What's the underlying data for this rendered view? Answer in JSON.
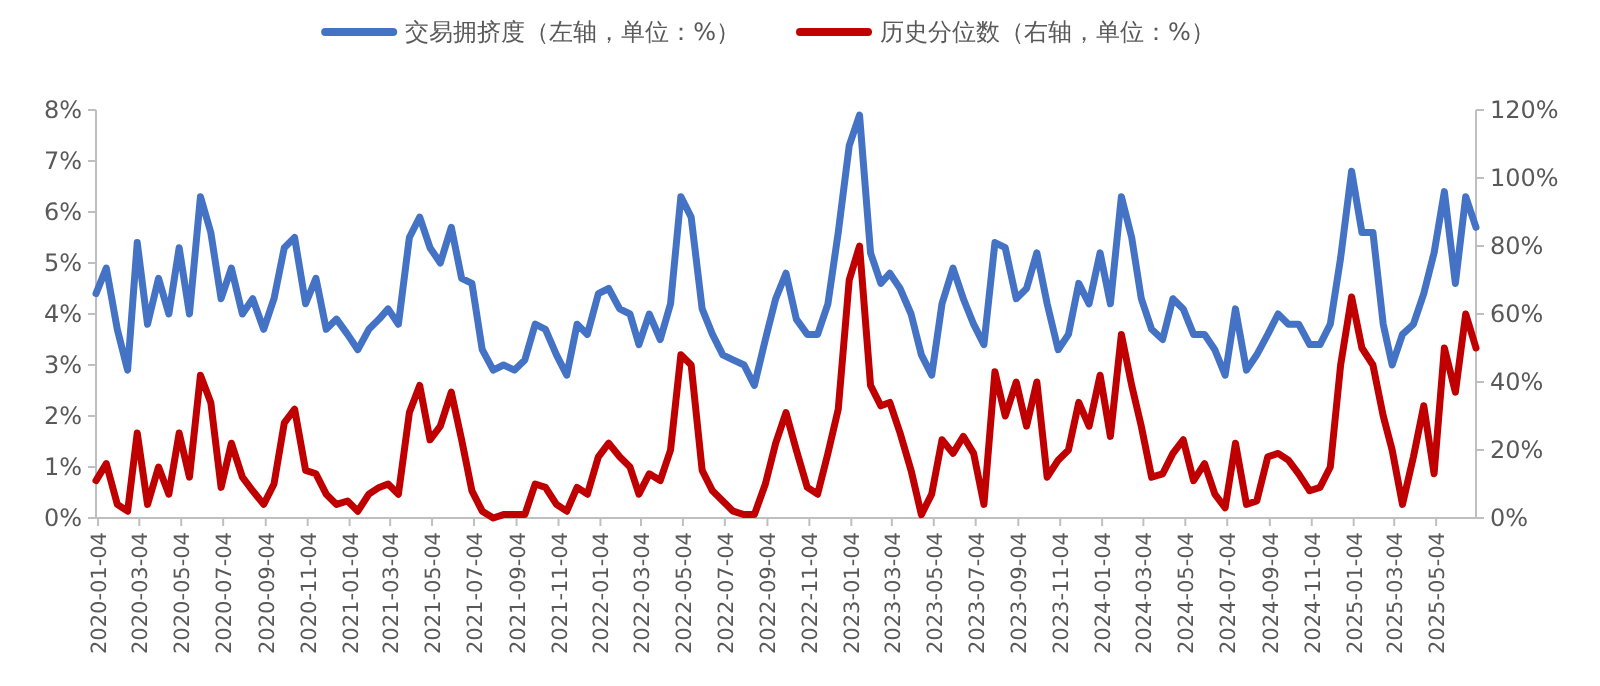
{
  "chart_data": {
    "type": "line",
    "legend": "top",
    "x": [
      "2020-01-01",
      "2020-01-16",
      "2020-02-01",
      "2020-02-16",
      "2020-03-01",
      "2020-03-16",
      "2020-04-01",
      "2020-04-16",
      "2020-05-01",
      "2020-05-16",
      "2020-06-01",
      "2020-06-16",
      "2020-07-01",
      "2020-07-16",
      "2020-08-01",
      "2020-08-16",
      "2020-09-01",
      "2020-09-16",
      "2020-10-01",
      "2020-10-16",
      "2020-11-01",
      "2020-11-16",
      "2020-12-01",
      "2020-12-16",
      "2021-01-01",
      "2021-01-16",
      "2021-02-01",
      "2021-02-16",
      "2021-03-01",
      "2021-03-16",
      "2021-04-01",
      "2021-04-16",
      "2021-05-01",
      "2021-05-16",
      "2021-06-01",
      "2021-06-16",
      "2021-07-01",
      "2021-07-16",
      "2021-08-01",
      "2021-08-16",
      "2021-09-01",
      "2021-09-16",
      "2021-10-01",
      "2021-10-16",
      "2021-11-01",
      "2021-11-16",
      "2021-12-01",
      "2021-12-16",
      "2022-01-01",
      "2022-01-16",
      "2022-02-01",
      "2022-02-16",
      "2022-03-01",
      "2022-03-16",
      "2022-04-01",
      "2022-04-16",
      "2022-05-01",
      "2022-05-16",
      "2022-06-01",
      "2022-06-16",
      "2022-07-01",
      "2022-07-16",
      "2022-08-01",
      "2022-08-16",
      "2022-09-01",
      "2022-09-16",
      "2022-10-01",
      "2022-10-16",
      "2022-11-01",
      "2022-11-16",
      "2022-12-01",
      "2022-12-16",
      "2023-01-01",
      "2023-01-16",
      "2023-02-01",
      "2023-02-16",
      "2023-03-01",
      "2023-03-16",
      "2023-04-01",
      "2023-04-16",
      "2023-05-01",
      "2023-05-16",
      "2023-06-01",
      "2023-06-16",
      "2023-07-01",
      "2023-07-16",
      "2023-08-01",
      "2023-08-16",
      "2023-09-01",
      "2023-09-16",
      "2023-10-01",
      "2023-10-16",
      "2023-11-01",
      "2023-11-16",
      "2023-12-01",
      "2023-12-16",
      "2024-01-01",
      "2024-01-16",
      "2024-02-01",
      "2024-02-16",
      "2024-03-01",
      "2024-03-16",
      "2024-04-01",
      "2024-04-16",
      "2024-05-01",
      "2024-05-16",
      "2024-06-01",
      "2024-06-16",
      "2024-07-01",
      "2024-07-16",
      "2024-08-01",
      "2024-08-16",
      "2024-09-01",
      "2024-09-16",
      "2024-10-01",
      "2024-10-16",
      "2024-11-01",
      "2024-11-16",
      "2024-12-01",
      "2024-12-16",
      "2025-01-01",
      "2025-01-16",
      "2025-02-01",
      "2025-02-16",
      "2025-03-01",
      "2025-03-16",
      "2025-04-01",
      "2025-04-16",
      "2025-05-01",
      "2025-05-16",
      "2025-06-01",
      "2025-06-16",
      "2025-07-01"
    ],
    "xlim": [
      "2020-01-01",
      "2025-07-01"
    ],
    "xticks": [
      "2020-01-04",
      "2020-03-04",
      "2020-05-04",
      "2020-07-04",
      "2020-09-04",
      "2020-11-04",
      "2021-01-04",
      "2021-03-04",
      "2021-05-04",
      "2021-07-04",
      "2021-09-04",
      "2021-11-04",
      "2022-01-04",
      "2022-03-04",
      "2022-05-04",
      "2022-07-04",
      "2022-09-04",
      "2022-11-04",
      "2023-01-04",
      "2023-03-04",
      "2023-05-04",
      "2023-07-04",
      "2023-09-04",
      "2023-11-04",
      "2024-01-04",
      "2024-03-04",
      "2024-05-04",
      "2024-07-04",
      "2024-09-04",
      "2024-11-04",
      "2025-01-04",
      "2025-03-04",
      "2025-05-04"
    ],
    "ylim": [
      0,
      8
    ],
    "yticks": [
      {
        "value": 0,
        "label": "0%"
      },
      {
        "value": 1,
        "label": "1%"
      },
      {
        "value": 2,
        "label": "2%"
      },
      {
        "value": 3,
        "label": "3%"
      },
      {
        "value": 4,
        "label": "4%"
      },
      {
        "value": 5,
        "label": "5%"
      },
      {
        "value": 6,
        "label": "6%"
      },
      {
        "value": 7,
        "label": "7%"
      },
      {
        "value": 8,
        "label": "8%"
      }
    ],
    "y2lim": [
      0,
      120
    ],
    "y2ticks": [
      {
        "value": 0,
        "label": "0%"
      },
      {
        "value": 20,
        "label": "20%"
      },
      {
        "value": 40,
        "label": "40%"
      },
      {
        "value": 60,
        "label": "60%"
      },
      {
        "value": 80,
        "label": "80%"
      },
      {
        "value": 100,
        "label": "100%"
      },
      {
        "value": 120,
        "label": "120%"
      }
    ],
    "series": [
      {
        "name": "交易拥挤度（左轴，单位：%）",
        "color": "#4472c4",
        "values": [
          4.4,
          4.9,
          3.7,
          2.9,
          5.4,
          3.8,
          4.7,
          4.0,
          5.3,
          4.0,
          6.3,
          5.6,
          4.3,
          4.9,
          4.0,
          4.3,
          3.7,
          4.3,
          5.3,
          5.5,
          4.2,
          4.7,
          3.7,
          3.9,
          3.6,
          3.3,
          3.7,
          3.9,
          4.1,
          3.8,
          5.5,
          5.9,
          5.3,
          5.0,
          5.7,
          4.7,
          4.6,
          3.3,
          2.9,
          3.0,
          2.9,
          3.1,
          3.8,
          3.7,
          3.2,
          2.8,
          3.8,
          3.6,
          4.4,
          4.5,
          4.1,
          4.0,
          3.4,
          4.0,
          3.5,
          4.2,
          6.3,
          5.9,
          4.1,
          3.6,
          3.2,
          3.1,
          3.0,
          2.6,
          3.5,
          4.3,
          4.8,
          3.9,
          3.6,
          3.6,
          4.2,
          5.6,
          7.3,
          7.9,
          5.2,
          4.6,
          4.8,
          4.5,
          4.0,
          3.2,
          2.8,
          4.2,
          4.9,
          4.3,
          3.8,
          3.4,
          5.4,
          5.3,
          4.3,
          4.5,
          5.2,
          4.2,
          3.3,
          3.6,
          4.6,
          4.2,
          5.2,
          4.2,
          6.3,
          5.5,
          4.3,
          3.7,
          3.5,
          4.3,
          4.1,
          3.6,
          3.6,
          3.3,
          2.8,
          4.1,
          2.9,
          3.2,
          3.6,
          4.0,
          3.8,
          3.8,
          3.4,
          3.4,
          3.8,
          5.1,
          6.8,
          5.6,
          5.6,
          3.8,
          3.0,
          3.6,
          3.8,
          4.4,
          5.2,
          6.4,
          4.6,
          6.3,
          5.7
        ]
      },
      {
        "name": "历史分位数（右轴，单位：%）",
        "color": "#c00000",
        "axis": "y2",
        "values": [
          11,
          16,
          4,
          2,
          25,
          4,
          15,
          7,
          25,
          12,
          42,
          34,
          9,
          22,
          12,
          8,
          4,
          10,
          28,
          32,
          14,
          13,
          7,
          4,
          5,
          2,
          7,
          9,
          10,
          7,
          31,
          39,
          23,
          27,
          37,
          23,
          8,
          2,
          0,
          1,
          1,
          1,
          10,
          9,
          4,
          2,
          9,
          7,
          18,
          22,
          18,
          15,
          7,
          13,
          11,
          20,
          48,
          45,
          14,
          8,
          5,
          2,
          1,
          1,
          10,
          22,
          31,
          20,
          9,
          7,
          19,
          32,
          70,
          80,
          39,
          33,
          34,
          25,
          14,
          1,
          7,
          23,
          19,
          24,
          19,
          4,
          43,
          30,
          40,
          27,
          40,
          12,
          17,
          20,
          34,
          27,
          42,
          24,
          54,
          39,
          27,
          12,
          13,
          19,
          23,
          11,
          16,
          7,
          3,
          22,
          4,
          5,
          18,
          19,
          17,
          13,
          8,
          9,
          15,
          45,
          65,
          50,
          45,
          30,
          20,
          4,
          18,
          33,
          13,
          50,
          37,
          60,
          50
        ]
      }
    ]
  }
}
